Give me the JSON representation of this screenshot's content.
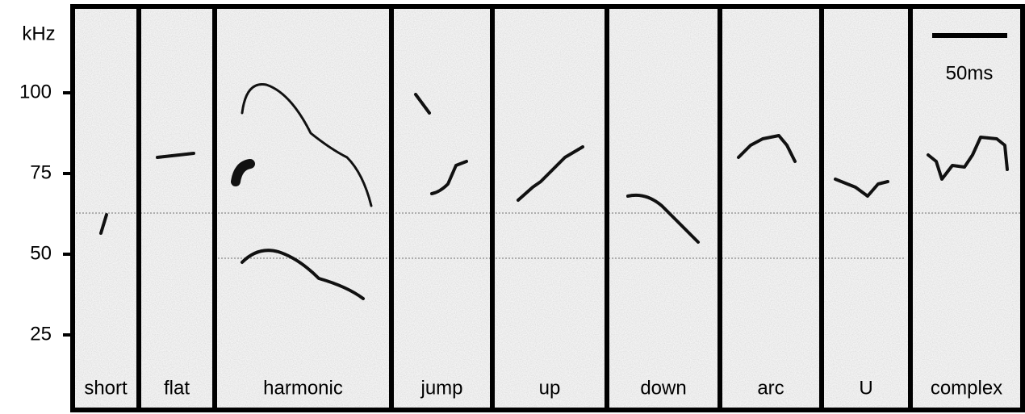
{
  "axis": {
    "unit": "kHz",
    "ticks": [
      100,
      75,
      50,
      25
    ]
  },
  "panels": [
    "short",
    "flat",
    "harmonic",
    "jump",
    "up",
    "down",
    "arc",
    "U",
    "complex"
  ],
  "scale_bar": "50ms"
}
